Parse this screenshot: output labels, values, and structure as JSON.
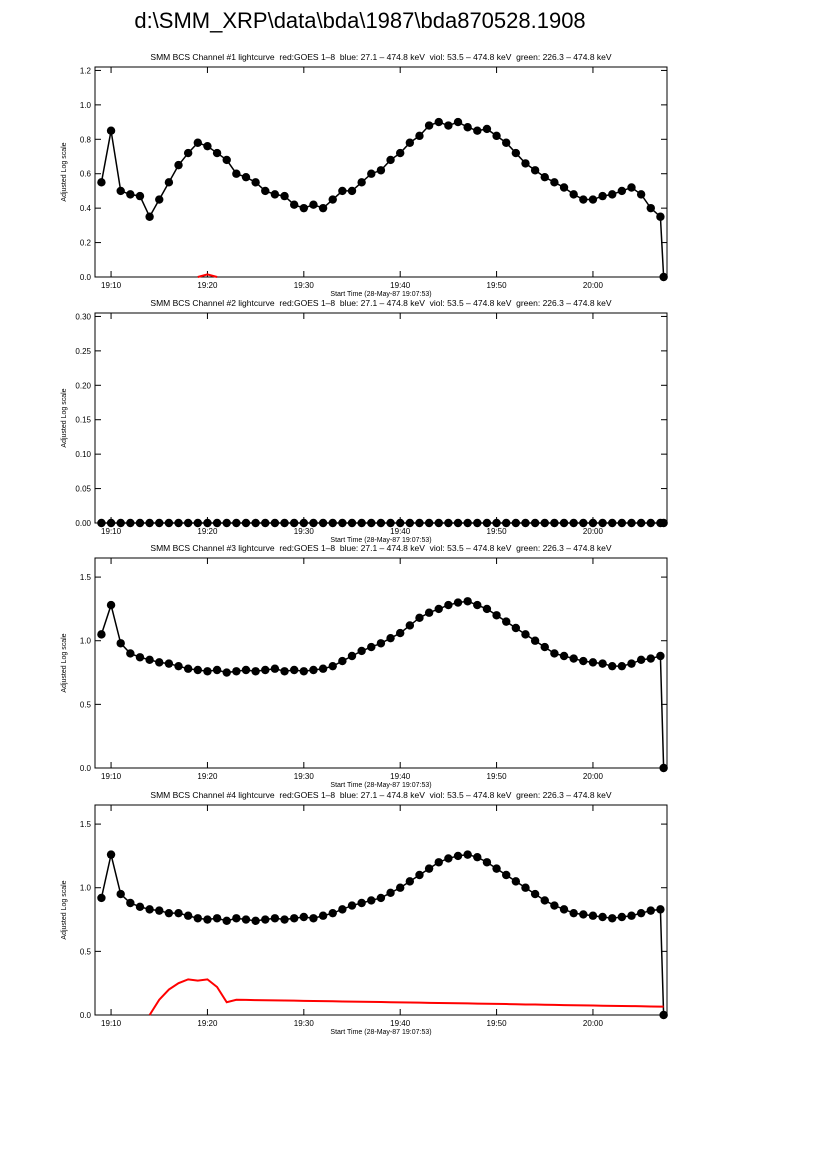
{
  "page_title": "d:\\SMM_XRP\\data\\bda\\1987\\bda870528.1908",
  "chart_data": [
    {
      "type": "line",
      "title": "SMM BCS Channel #1 lightcurve  red:GOES 1–8  blue: 27.1 – 474.8 keV  viol: 53.5 – 474.8 keV  green: 226.3 – 474.8 keV",
      "x_label": "Start Time (28-May-87 19:07:53)",
      "y_label": "Adjusted Log scale",
      "xlim": [
        "19:08:20",
        "20:07:41"
      ],
      "xticks": [
        "19:10",
        "19:20",
        "19:30",
        "19:40",
        "19:50",
        "20:00"
      ],
      "ylim": [
        0,
        1.22
      ],
      "yticks": [
        {
          "value": 0,
          "label": "0.0"
        },
        0.2,
        0.4,
        0.6,
        0.8,
        {
          "value": 1,
          "label": "1.0"
        },
        1.2
      ],
      "x": [
        "19:09",
        "19:10",
        "19:11",
        "19:12",
        "19:13",
        "19:14",
        "19:15",
        "19:16",
        "19:17",
        "19:18",
        "19:19",
        "19:20",
        "19:21",
        "19:22",
        "19:23",
        "19:24",
        "19:25",
        "19:26",
        "19:27",
        "19:28",
        "19:29",
        "19:30",
        "19:31",
        "19:32",
        "19:33",
        "19:34",
        "19:35",
        "19:36",
        "19:37",
        "19:38",
        "19:39",
        "19:40",
        "19:41",
        "19:42",
        "19:43",
        "19:44",
        "19:45",
        "19:46",
        "19:47",
        "19:48",
        "19:49",
        "19:50",
        "19:51",
        "19:52",
        "19:53",
        "19:54",
        "19:55",
        "19:56",
        "19:57",
        "19:58",
        "19:59",
        "20:00",
        "20:01",
        "20:02",
        "20:03",
        "20:04",
        "20:05",
        "20:06",
        "20:07",
        "20:07:20"
      ],
      "series": [
        {
          "color": "#000000",
          "markers": true,
          "values": [
            0.55,
            0.85,
            0.5,
            0.48,
            0.47,
            0.35,
            0.45,
            0.55,
            0.65,
            0.72,
            0.78,
            0.76,
            0.72,
            0.68,
            0.6,
            0.58,
            0.55,
            0.5,
            0.48,
            0.47,
            0.42,
            0.4,
            0.42,
            0.4,
            0.45,
            0.5,
            0.5,
            0.55,
            0.6,
            0.62,
            0.68,
            0.72,
            0.78,
            0.82,
            0.88,
            0.9,
            0.88,
            0.9,
            0.87,
            0.85,
            0.86,
            0.82,
            0.78,
            0.72,
            0.66,
            0.62,
            0.58,
            0.55,
            0.52,
            0.48,
            0.45,
            0.45,
            0.47,
            0.48,
            0.5,
            0.52,
            0.48,
            0.4,
            0.35,
            0
          ]
        },
        {
          "color": "#ff0000",
          "markers": false,
          "values": [
            null,
            null,
            null,
            null,
            null,
            null,
            null,
            null,
            null,
            null,
            0,
            0.015,
            0,
            null,
            null,
            null,
            null,
            null,
            null,
            null,
            null,
            null,
            null,
            null,
            null,
            null,
            null,
            null,
            null,
            null,
            null,
            null,
            null,
            null,
            null,
            null,
            null,
            null,
            null,
            null,
            null,
            null,
            null,
            null,
            null,
            null,
            null,
            null,
            null,
            null,
            null,
            null,
            null,
            null,
            null,
            null,
            null,
            null,
            null,
            null
          ]
        }
      ]
    },
    {
      "type": "line",
      "title": "SMM BCS Channel #2 lightcurve  red:GOES 1–8  blue: 27.1 – 474.8 keV  viol: 53.5 – 474.8 keV  green: 226.3 – 474.8 keV",
      "x_label": "Start Time (28-May-87 19:07:53)",
      "y_label": "Adjusted Log scale",
      "xlim": [
        "19:08:20",
        "20:07:41"
      ],
      "xticks": [
        "19:10",
        "19:20",
        "19:30",
        "19:40",
        "19:50",
        "20:00"
      ],
      "ylim": [
        0,
        0.305
      ],
      "yticks": [
        {
          "value": 0,
          "label": "0.00"
        },
        {
          "value": 0.05,
          "label": "0.05"
        },
        {
          "value": 0.1,
          "label": "0.10"
        },
        {
          "value": 0.15,
          "label": "0.15"
        },
        {
          "value": 0.2,
          "label": "0.20"
        },
        {
          "value": 0.25,
          "label": "0.25"
        },
        {
          "value": 0.3,
          "label": "0.30"
        }
      ],
      "x": [
        "19:09",
        "19:10",
        "19:11",
        "19:12",
        "19:13",
        "19:14",
        "19:15",
        "19:16",
        "19:17",
        "19:18",
        "19:19",
        "19:20",
        "19:21",
        "19:22",
        "19:23",
        "19:24",
        "19:25",
        "19:26",
        "19:27",
        "19:28",
        "19:29",
        "19:30",
        "19:31",
        "19:32",
        "19:33",
        "19:34",
        "19:35",
        "19:36",
        "19:37",
        "19:38",
        "19:39",
        "19:40",
        "19:41",
        "19:42",
        "19:43",
        "19:44",
        "19:45",
        "19:46",
        "19:47",
        "19:48",
        "19:49",
        "19:50",
        "19:51",
        "19:52",
        "19:53",
        "19:54",
        "19:55",
        "19:56",
        "19:57",
        "19:58",
        "19:59",
        "20:00",
        "20:01",
        "20:02",
        "20:03",
        "20:04",
        "20:05",
        "20:06",
        "20:07",
        "20:07:20"
      ],
      "series": [
        {
          "color": "#000000",
          "markers": true,
          "values": [
            0,
            0,
            0,
            0,
            0,
            0,
            0,
            0,
            0,
            0,
            0,
            0,
            0,
            0,
            0,
            0,
            0,
            0,
            0,
            0,
            0,
            0,
            0,
            0,
            0,
            0,
            0,
            0,
            0,
            0,
            0,
            0,
            0,
            0,
            0,
            0,
            0,
            0,
            0,
            0,
            0,
            0,
            0,
            0,
            0,
            0,
            0,
            0,
            0,
            0,
            0,
            0,
            0,
            0,
            0,
            0,
            0,
            0,
            0,
            0
          ]
        }
      ]
    },
    {
      "type": "line",
      "title": "SMM BCS Channel #3 lightcurve  red:GOES 1–8  blue: 27.1 – 474.8 keV  viol: 53.5 – 474.8 keV  green: 226.3 – 474.8 keV",
      "x_label": "Start Time (28-May-87 19:07:53)",
      "y_label": "Adjusted Log scale",
      "xlim": [
        "19:08:20",
        "20:07:41"
      ],
      "xticks": [
        "19:10",
        "19:20",
        "19:30",
        "19:40",
        "19:50",
        "20:00"
      ],
      "ylim": [
        0,
        1.65
      ],
      "yticks": [
        {
          "value": 0,
          "label": "0.0"
        },
        0.5,
        {
          "value": 1,
          "label": "1.0"
        },
        1.5
      ],
      "x": [
        "19:09",
        "19:10",
        "19:11",
        "19:12",
        "19:13",
        "19:14",
        "19:15",
        "19:16",
        "19:17",
        "19:18",
        "19:19",
        "19:20",
        "19:21",
        "19:22",
        "19:23",
        "19:24",
        "19:25",
        "19:26",
        "19:27",
        "19:28",
        "19:29",
        "19:30",
        "19:31",
        "19:32",
        "19:33",
        "19:34",
        "19:35",
        "19:36",
        "19:37",
        "19:38",
        "19:39",
        "19:40",
        "19:41",
        "19:42",
        "19:43",
        "19:44",
        "19:45",
        "19:46",
        "19:47",
        "19:48",
        "19:49",
        "19:50",
        "19:51",
        "19:52",
        "19:53",
        "19:54",
        "19:55",
        "19:56",
        "19:57",
        "19:58",
        "19:59",
        "20:00",
        "20:01",
        "20:02",
        "20:03",
        "20:04",
        "20:05",
        "20:06",
        "20:07",
        "20:07:20"
      ],
      "series": [
        {
          "color": "#000000",
          "markers": true,
          "values": [
            1.05,
            1.28,
            0.98,
            0.9,
            0.87,
            0.85,
            0.83,
            0.82,
            0.8,
            0.78,
            0.77,
            0.76,
            0.77,
            0.75,
            0.76,
            0.77,
            0.76,
            0.77,
            0.78,
            0.76,
            0.77,
            0.76,
            0.77,
            0.78,
            0.8,
            0.84,
            0.88,
            0.92,
            0.95,
            0.98,
            1.02,
            1.06,
            1.12,
            1.18,
            1.22,
            1.25,
            1.28,
            1.3,
            1.31,
            1.28,
            1.25,
            1.2,
            1.15,
            1.1,
            1.05,
            1,
            0.95,
            0.9,
            0.88,
            0.86,
            0.84,
            0.83,
            0.82,
            0.8,
            0.8,
            0.82,
            0.85,
            0.86,
            0.88,
            0
          ]
        }
      ]
    },
    {
      "type": "line",
      "title": "SMM BCS Channel #4 lightcurve  red:GOES 1–8  blue: 27.1 – 474.8 keV  viol: 53.5 – 474.8 keV  green: 226.3 – 474.8 keV",
      "x_label": "Start Time (28-May-87 19:07:53)",
      "y_label": "Adjusted Log scale",
      "xlim": [
        "19:08:20",
        "20:07:41"
      ],
      "xticks": [
        "19:10",
        "19:20",
        "19:30",
        "19:40",
        "19:50",
        "20:00"
      ],
      "ylim": [
        0,
        1.65
      ],
      "yticks": [
        {
          "value": 0,
          "label": "0.0"
        },
        0.5,
        {
          "value": 1,
          "label": "1.0"
        },
        1.5
      ],
      "x": [
        "19:09",
        "19:10",
        "19:11",
        "19:12",
        "19:13",
        "19:14",
        "19:15",
        "19:16",
        "19:17",
        "19:18",
        "19:19",
        "19:20",
        "19:21",
        "19:22",
        "19:23",
        "19:24",
        "19:25",
        "19:26",
        "19:27",
        "19:28",
        "19:29",
        "19:30",
        "19:31",
        "19:32",
        "19:33",
        "19:34",
        "19:35",
        "19:36",
        "19:37",
        "19:38",
        "19:39",
        "19:40",
        "19:41",
        "19:42",
        "19:43",
        "19:44",
        "19:45",
        "19:46",
        "19:47",
        "19:48",
        "19:49",
        "19:50",
        "19:51",
        "19:52",
        "19:53",
        "19:54",
        "19:55",
        "19:56",
        "19:57",
        "19:58",
        "19:59",
        "20:00",
        "20:01",
        "20:02",
        "20:03",
        "20:04",
        "20:05",
        "20:06",
        "20:07",
        "20:07:20"
      ],
      "series": [
        {
          "color": "#000000",
          "markers": true,
          "values": [
            0.92,
            1.26,
            0.95,
            0.88,
            0.85,
            0.83,
            0.82,
            0.8,
            0.8,
            0.78,
            0.76,
            0.75,
            0.76,
            0.74,
            0.76,
            0.75,
            0.74,
            0.75,
            0.76,
            0.75,
            0.76,
            0.77,
            0.76,
            0.78,
            0.8,
            0.83,
            0.86,
            0.88,
            0.9,
            0.92,
            0.96,
            1,
            1.05,
            1.1,
            1.15,
            1.2,
            1.23,
            1.25,
            1.26,
            1.24,
            1.2,
            1.15,
            1.1,
            1.05,
            1,
            0.95,
            0.9,
            0.86,
            0.83,
            0.8,
            0.79,
            0.78,
            0.77,
            0.76,
            0.77,
            0.78,
            0.8,
            0.82,
            0.83,
            0
          ]
        },
        {
          "color": "#ff0000",
          "markers": false,
          "values": [
            null,
            null,
            null,
            null,
            null,
            0,
            0.12,
            0.2,
            0.25,
            0.28,
            0.27,
            0.28,
            0.22,
            0.1,
            0.12,
            0.119,
            0.117,
            0.116,
            0.115,
            0.114,
            0.113,
            0.111,
            0.11,
            0.109,
            0.108,
            0.106,
            0.105,
            0.104,
            0.103,
            0.102,
            0.1,
            0.099,
            0.098,
            0.097,
            0.095,
            0.094,
            0.093,
            0.092,
            0.091,
            0.089,
            0.088,
            0.087,
            0.086,
            0.084,
            0.083,
            0.082,
            0.081,
            0.08,
            0.078,
            0.077,
            0.076,
            0.075,
            0.073,
            0.072,
            0.071,
            0.07,
            0.069,
            0.067,
            0.066,
            0.066
          ]
        }
      ]
    }
  ]
}
